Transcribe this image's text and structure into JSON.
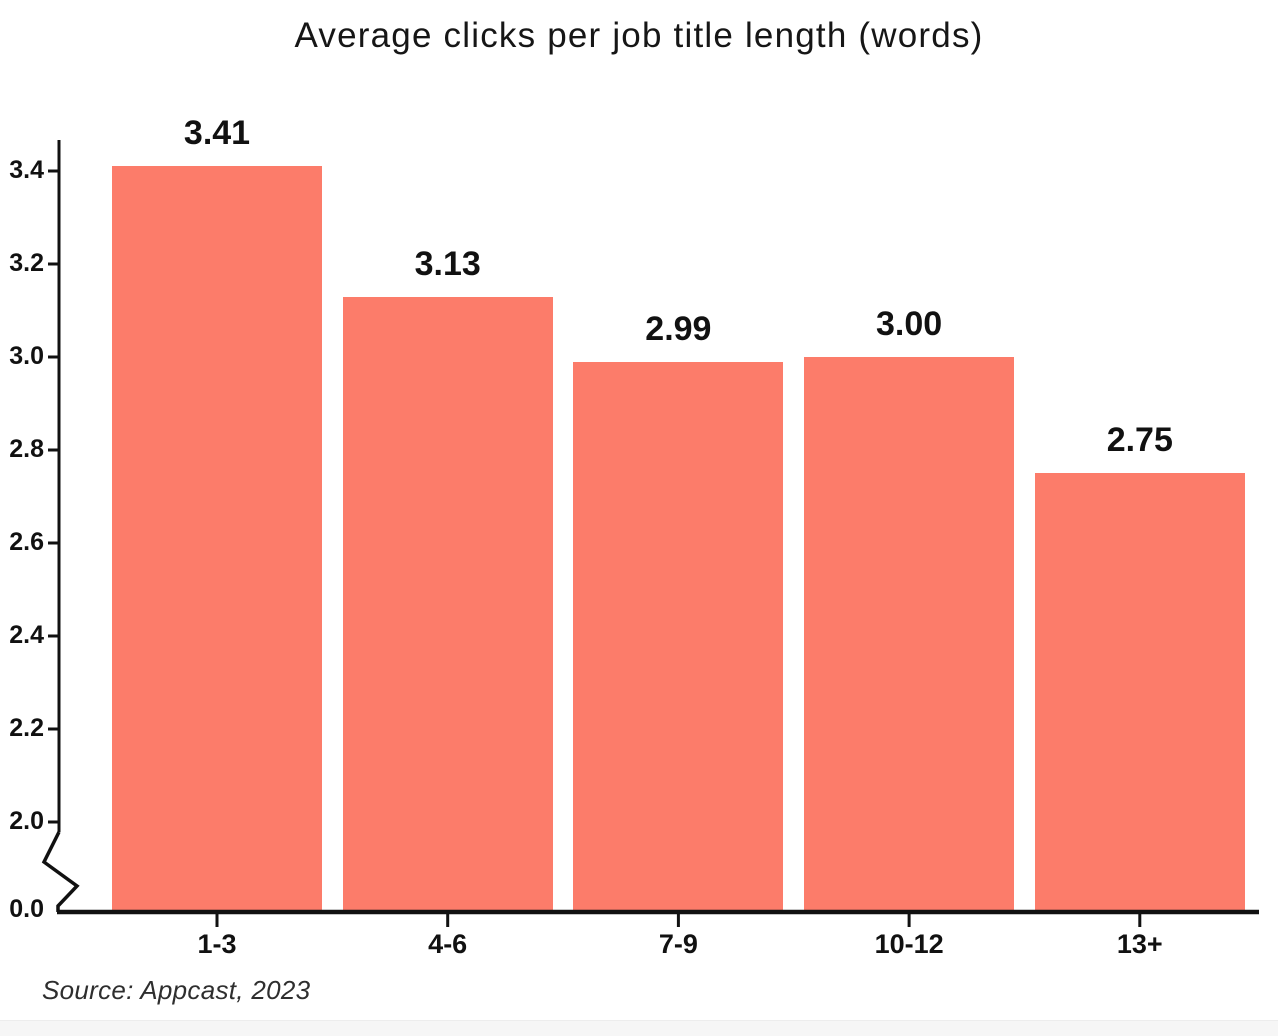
{
  "title": "Average clicks per job title length (words)",
  "source": "Source: Appcast, 2023",
  "chart_data": {
    "type": "bar",
    "title": "Average clicks per job title length (words)",
    "categories": [
      "1-3",
      "4-6",
      "7-9",
      "10-12",
      "13+"
    ],
    "values": [
      3.41,
      3.13,
      2.99,
      3.0,
      2.75
    ],
    "value_labels": [
      "3.41",
      "3.13",
      "2.99",
      "3.00",
      "2.75"
    ],
    "xlabel": "",
    "ylabel": "",
    "y_ticks": [
      3.4,
      3.2,
      3.0,
      2.8,
      2.6,
      2.4,
      2.2,
      2.0,
      0.0
    ],
    "y_tick_labels": [
      "3.4",
      "3.2",
      "3.0",
      "2.8",
      "2.6",
      "2.4",
      "2.2",
      "2.0",
      "0.0"
    ],
    "axis_break": true,
    "axis_break_between": [
      0.0,
      2.0
    ],
    "grid": false,
    "legend_position": "none",
    "bar_color": "#FC7C6A",
    "axis_color": "#111111",
    "source": "Source: Appcast, 2023"
  }
}
